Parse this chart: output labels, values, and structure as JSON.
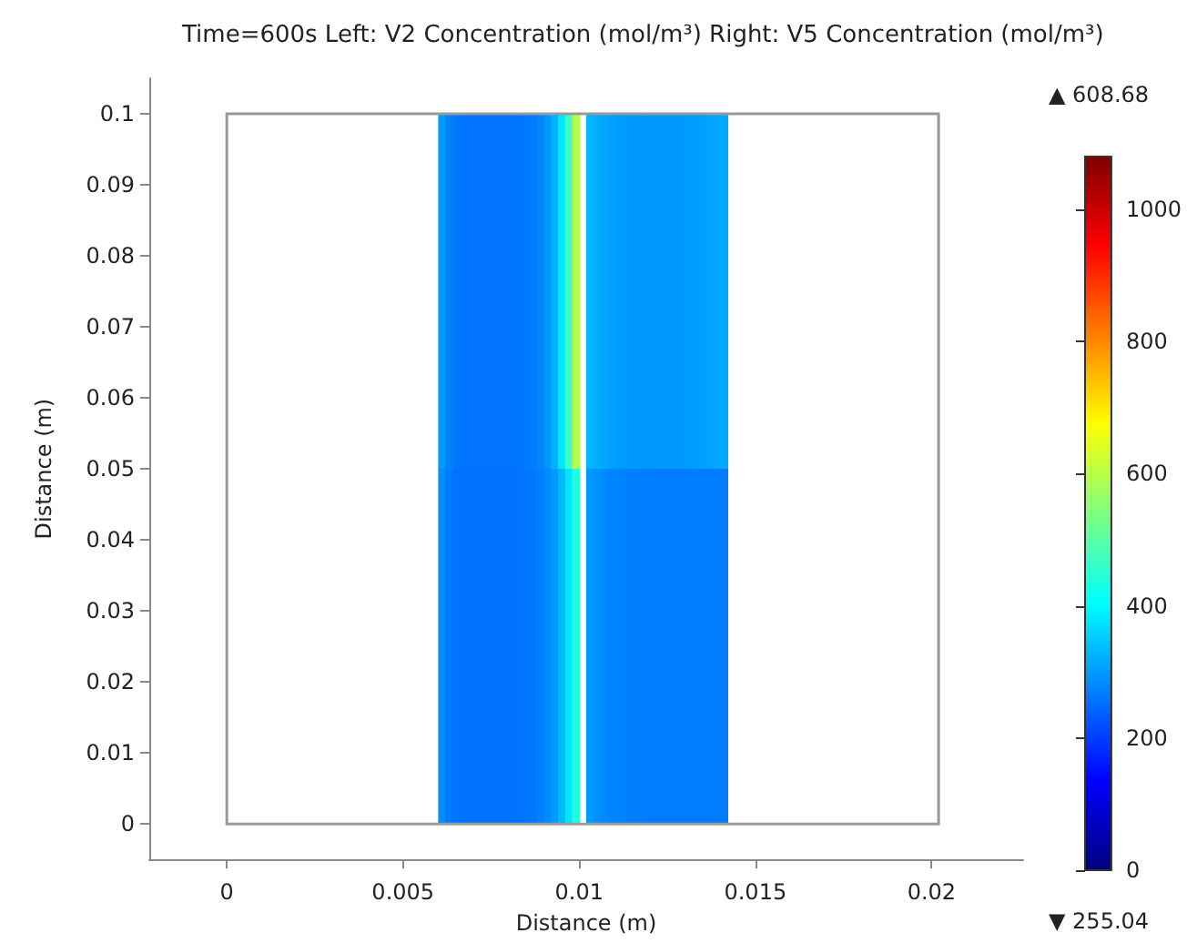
{
  "chart_data": {
    "type": "heatmap",
    "title": "Time=600s Left: V2 Concentration (mol/m³) Right: V5 Concentration (mol/m³)",
    "xlabel": "Distance (m)",
    "ylabel": "Distance (m)",
    "x": [
      0.0001,
      0.0003,
      0.0005,
      0.0007,
      0.0009,
      0.0011,
      0.0013,
      0.0015,
      0.0017,
      0.0019,
      0.0021,
      0.0023,
      0.0025,
      0.0027,
      0.0029,
      0.0031,
      0.0033,
      0.0035,
      0.0037,
      0.0039,
      0.0041,
      0.0043,
      0.0045,
      0.0047,
      0.0049,
      0.0051,
      0.0053,
      0.0055,
      0.0057,
      0.0059,
      0.0061,
      0.0063,
      0.0065,
      0.0067,
      0.0069,
      0.0071,
      0.0073,
      0.0075,
      0.0077,
      0.0079,
      0.0081,
      0.0083,
      0.0085,
      0.0087,
      0.0089,
      0.0091,
      0.0093,
      0.0095,
      0.0097,
      0.0099,
      0.0101,
      0.0103,
      0.0105,
      0.0107,
      0.0109,
      0.0111,
      0.0113,
      0.0115,
      0.0117,
      0.0119,
      0.0121,
      0.0123,
      0.0125,
      0.0127,
      0.0129,
      0.0131,
      0.0133,
      0.0135,
      0.0137,
      0.0139,
      0.0141,
      0.0143,
      0.0145,
      0.0147,
      0.0149,
      0.0151,
      0.0153,
      0.0155,
      0.0157,
      0.0159,
      0.0161,
      0.0163,
      0.0165,
      0.0167,
      0.0169,
      0.0171,
      0.0173,
      0.0175,
      0.0177,
      0.0179,
      0.0181,
      0.0183,
      0.0185,
      0.0187,
      0.0189,
      0.0191,
      0.0193,
      0.0195,
      0.0197,
      0.0199,
      0.0201
    ],
    "cells": [
      [
        null,
        null,
        null,
        null,
        null,
        null,
        null,
        null,
        null,
        null,
        null,
        null,
        null,
        null,
        null,
        null,
        null,
        null,
        null,
        null,
        null,
        null,
        null,
        null,
        null,
        null,
        null,
        null,
        null,
        null,
        300,
        275,
        262,
        258,
        257,
        257,
        257,
        257,
        257,
        257,
        258,
        260,
        263,
        268,
        278,
        295,
        325,
        380,
        470,
        600,
        null,
        330,
        320,
        312,
        306,
        302,
        300,
        298,
        297,
        296,
        296,
        296,
        296,
        297,
        298,
        300,
        302,
        305,
        308,
        312,
        316,
        null,
        null,
        null,
        null,
        null,
        null,
        null,
        null,
        null,
        null,
        null,
        null,
        null,
        null,
        null,
        null,
        null,
        null,
        null,
        null,
        null,
        null,
        null,
        null,
        null,
        null,
        null,
        null,
        null,
        null
      ],
      [
        null,
        null,
        null,
        null,
        null,
        null,
        null,
        null,
        null,
        null,
        null,
        null,
        null,
        null,
        null,
        null,
        null,
        null,
        null,
        null,
        null,
        null,
        null,
        null,
        null,
        null,
        null,
        null,
        null,
        null,
        285,
        268,
        258,
        256,
        256,
        256,
        256,
        256,
        256,
        256,
        256,
        257,
        259,
        263,
        270,
        282,
        300,
        330,
        380,
        440,
        null,
        300,
        290,
        283,
        278,
        275,
        273,
        271,
        270,
        269,
        268,
        268,
        268,
        268,
        268,
        268,
        268,
        268,
        268,
        268,
        268,
        null,
        null,
        null,
        null,
        null,
        null,
        null,
        null,
        null,
        null,
        null,
        null,
        null,
        null,
        null,
        null,
        null,
        null,
        null,
        null,
        null,
        null,
        null,
        null,
        null,
        null,
        null,
        null,
        null,
        null
      ]
    ],
    "xlim": [
      -0.0022,
      0.0226
    ],
    "xticks": [
      0,
      0.005,
      0.01,
      0.015,
      0.02
    ],
    "ylim": [
      -0.005,
      0.105
    ],
    "yticks": [
      0,
      0.01,
      0.02,
      0.03,
      0.04,
      0.05,
      0.06,
      0.07,
      0.08,
      0.09,
      0.1
    ],
    "clim": [
      0,
      1080
    ],
    "cticks": [
      0,
      200,
      400,
      600,
      800,
      1000
    ],
    "grid": false,
    "annotations": [
      "▲ 608.68",
      "▼ 255.04"
    ]
  }
}
